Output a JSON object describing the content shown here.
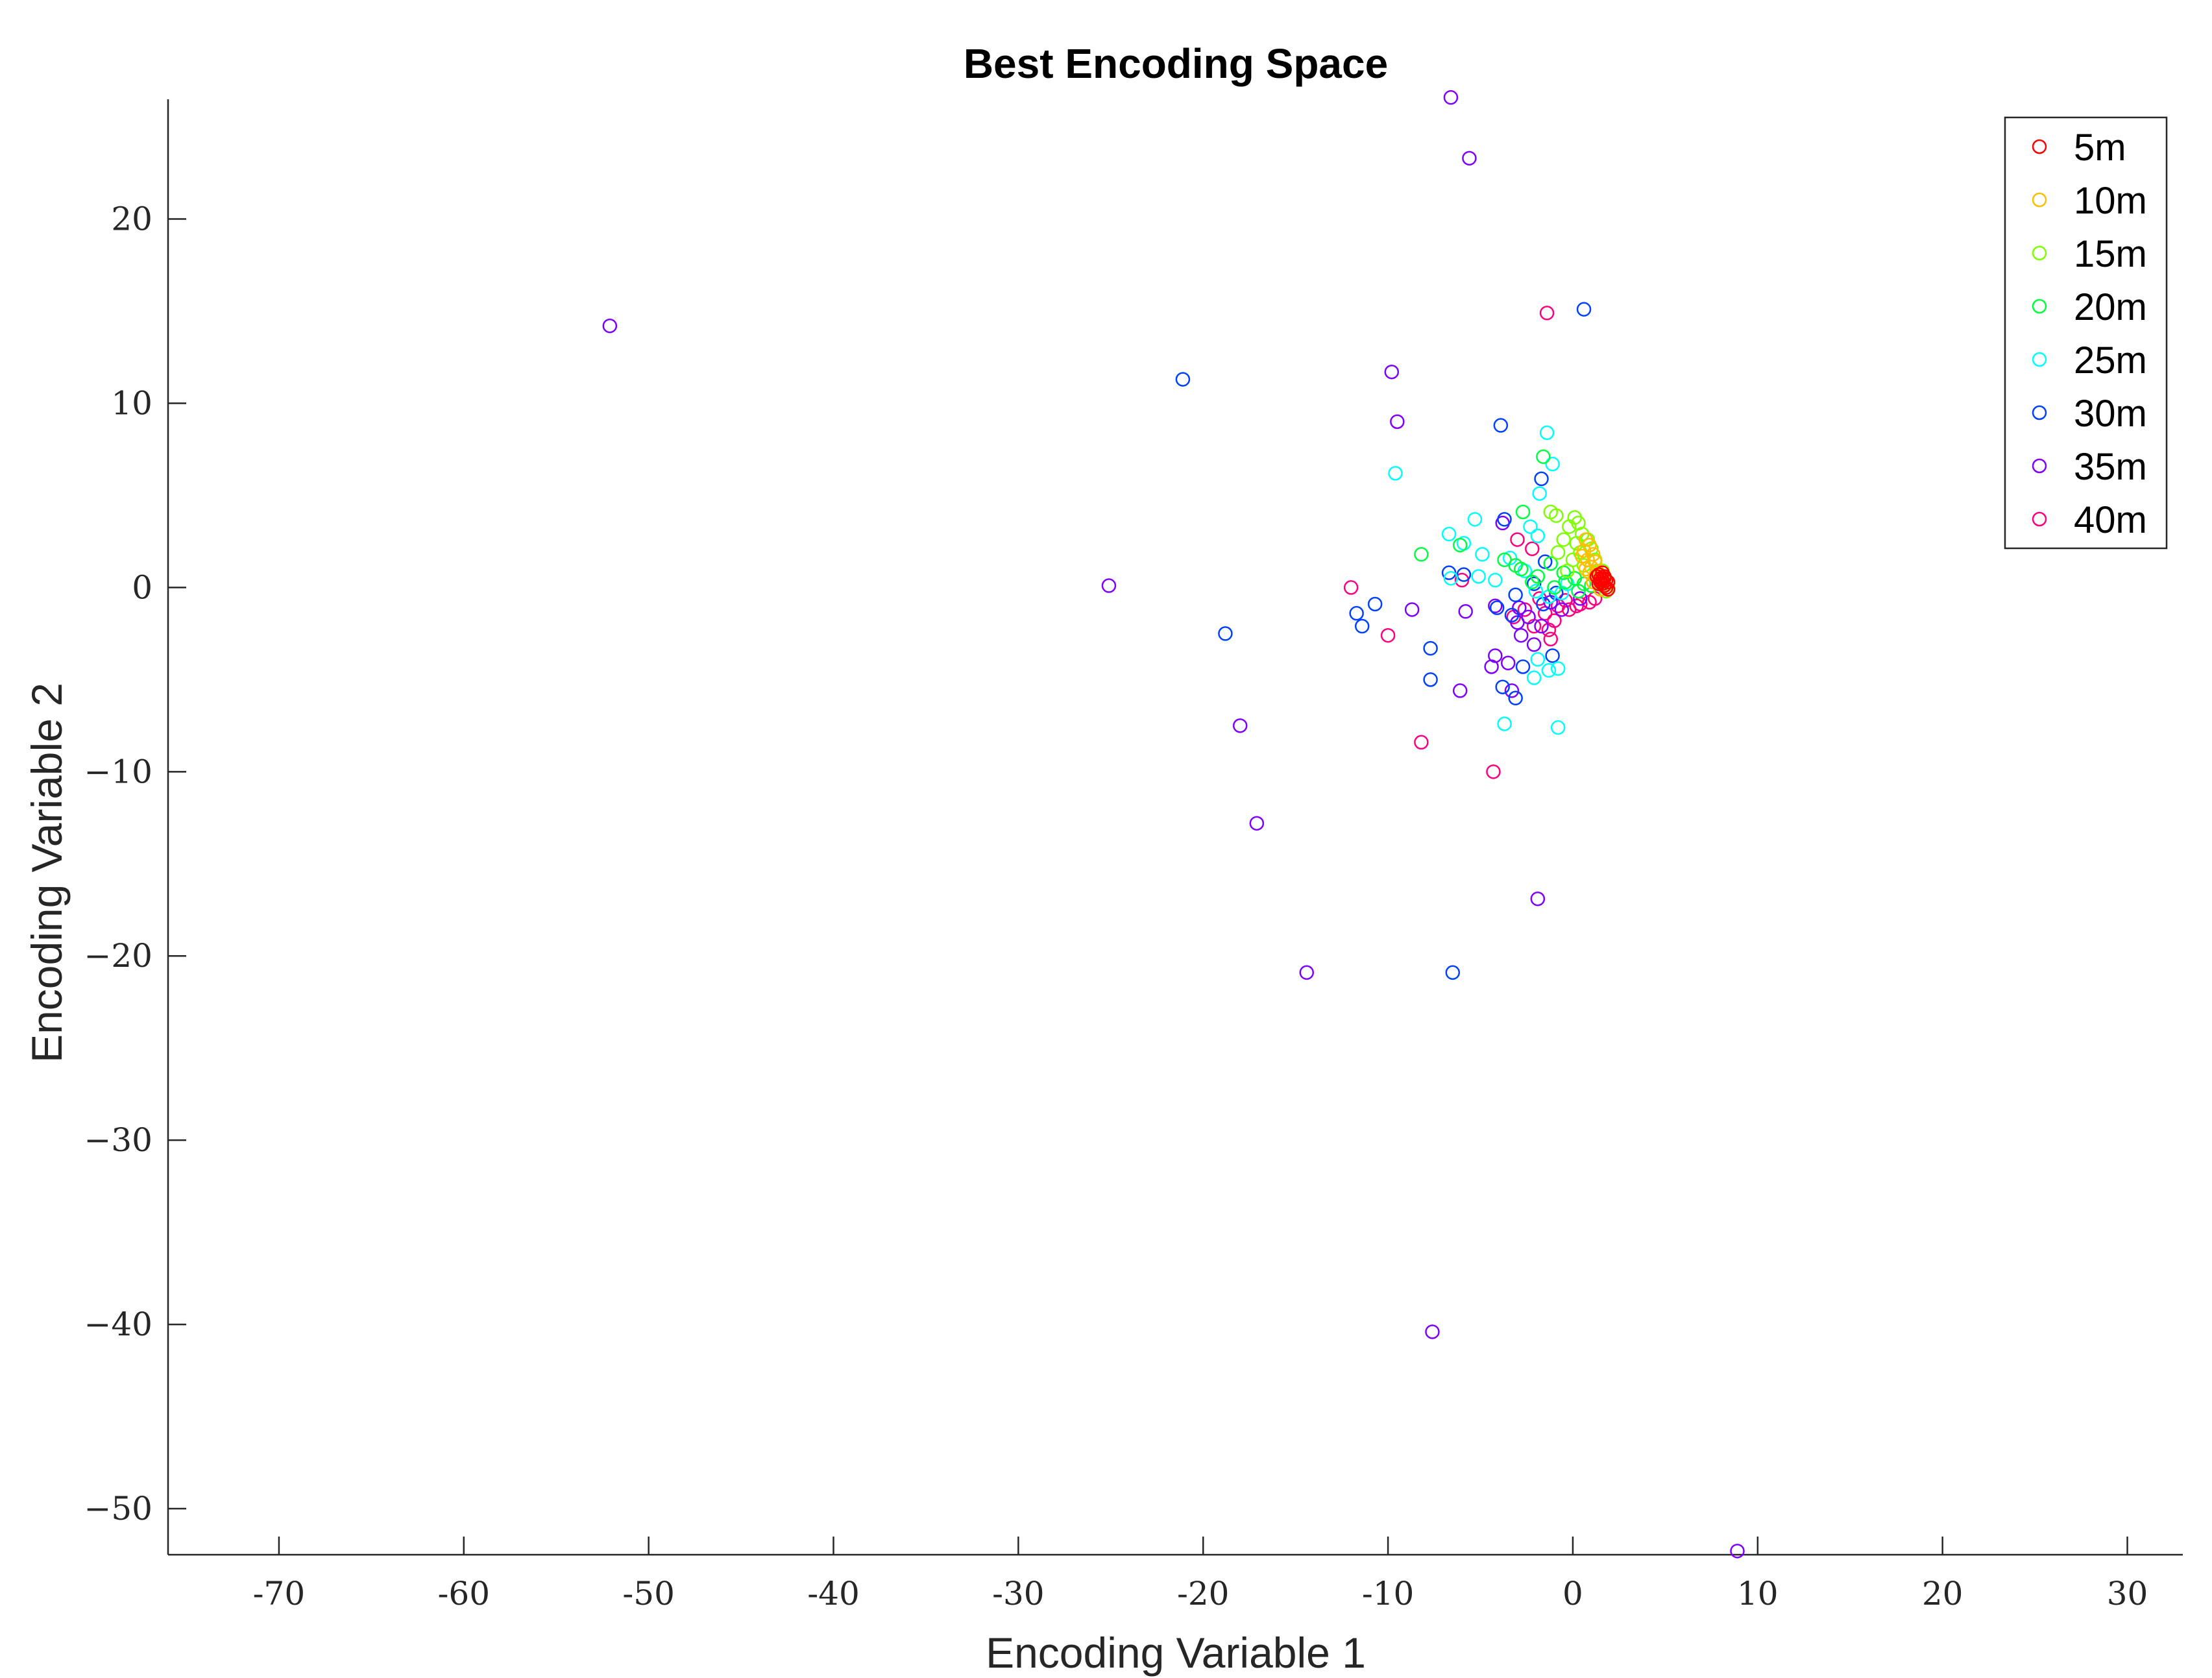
{
  "chart_data": {
    "type": "scatter",
    "title": "Best Encoding Space",
    "xlabel": "Encoding Variable 1",
    "ylabel": "Encoding Variable 2",
    "xlim": [
      -76,
      33
    ],
    "ylim": [
      -52.5,
      26.5
    ],
    "xticks": [
      -70,
      -60,
      -50,
      -40,
      -30,
      -20,
      -10,
      0,
      10,
      20,
      30
    ],
    "xtick_labels": [
      "-70",
      "-60",
      "-50",
      "-40",
      "-30",
      "-20",
      "-10",
      "0",
      "10",
      "20",
      "30"
    ],
    "yticks": [
      20,
      10,
      0,
      -10,
      -20,
      -30,
      -40,
      -50
    ],
    "ytick_labels": [
      "20",
      "10",
      "0",
      "−10",
      "−20",
      "−30",
      "−40",
      "−50"
    ],
    "grid": false,
    "marker": "open-circle",
    "legend_position": "top-right",
    "series": [
      {
        "name": "5m",
        "color": "#ff0000",
        "points": [
          [
            1.6,
            0.8
          ],
          [
            1.7,
            0.6
          ],
          [
            1.8,
            0.4
          ],
          [
            1.5,
            0.5
          ],
          [
            1.9,
            0.3
          ],
          [
            1.6,
            0.2
          ],
          [
            1.4,
            0.7
          ],
          [
            1.7,
            0.1
          ],
          [
            1.8,
            0.0
          ],
          [
            1.5,
            0.3
          ],
          [
            1.3,
            0.6
          ],
          [
            1.9,
            -0.1
          ],
          [
            1.6,
            0.4
          ],
          [
            1.7,
            0.5
          ],
          [
            1.4,
            0.2
          ]
        ]
      },
      {
        "name": "10m",
        "color": "#ffbf00",
        "points": [
          [
            0.9,
            2.3
          ],
          [
            0.7,
            2.6
          ],
          [
            1.1,
            1.8
          ],
          [
            1.2,
            1.4
          ],
          [
            0.6,
            2.0
          ],
          [
            1.0,
            1.1
          ],
          [
            1.3,
            0.9
          ],
          [
            0.8,
            1.5
          ],
          [
            1.4,
            0.4
          ],
          [
            0.5,
            1.7
          ],
          [
            1.2,
            0.6
          ],
          [
            1.5,
            -0.1
          ],
          [
            0.9,
            0.8
          ],
          [
            1.1,
            0.3
          ],
          [
            0.7,
            1.0
          ]
        ]
      },
      {
        "name": "15m",
        "color": "#80ff00",
        "points": [
          [
            -1.2,
            4.1
          ],
          [
            -0.9,
            3.9
          ],
          [
            0.1,
            3.8
          ],
          [
            0.3,
            3.5
          ],
          [
            -0.2,
            3.3
          ],
          [
            0.5,
            2.9
          ],
          [
            0.8,
            2.6
          ],
          [
            0.2,
            2.4
          ],
          [
            -0.5,
            2.6
          ],
          [
            1.0,
            2.1
          ],
          [
            0.4,
            1.9
          ],
          [
            1.2,
            1.5
          ],
          [
            -0.8,
            1.9
          ],
          [
            1.6,
            0.9
          ],
          [
            1.9,
            0.2
          ],
          [
            1.8,
            -0.2
          ],
          [
            0.6,
            1.2
          ],
          [
            1.4,
            0.6
          ],
          [
            0.0,
            1.5
          ],
          [
            -0.3,
            0.9
          ]
        ]
      },
      {
        "name": "20m",
        "color": "#00ff40",
        "points": [
          [
            -1.6,
            7.1
          ],
          [
            -2.7,
            4.1
          ],
          [
            -6.1,
            2.3
          ],
          [
            -8.2,
            1.8
          ],
          [
            -3.1,
            1.2
          ],
          [
            -2.8,
            1.0
          ],
          [
            -1.2,
            1.3
          ],
          [
            -0.5,
            0.8
          ],
          [
            0.1,
            0.5
          ],
          [
            0.6,
            0.2
          ],
          [
            -1.9,
            0.6
          ],
          [
            -3.7,
            1.5
          ],
          [
            -2.2,
            0.3
          ],
          [
            -1.0,
            0.0
          ],
          [
            0.3,
            -0.2
          ],
          [
            1.0,
            0.1
          ],
          [
            -0.4,
            0.3
          ]
        ]
      },
      {
        "name": "25m",
        "color": "#00ffff",
        "points": [
          [
            -1.4,
            8.4
          ],
          [
            -1.1,
            6.7
          ],
          [
            -9.6,
            6.2
          ],
          [
            -1.8,
            5.1
          ],
          [
            -5.3,
            3.7
          ],
          [
            -2.3,
            3.3
          ],
          [
            -1.9,
            2.8
          ],
          [
            -6.7,
            2.9
          ],
          [
            -5.9,
            2.4
          ],
          [
            -4.9,
            1.8
          ],
          [
            -3.4,
            1.6
          ],
          [
            -2.6,
            0.9
          ],
          [
            -4.2,
            0.4
          ],
          [
            -5.1,
            0.6
          ],
          [
            -6.6,
            0.5
          ],
          [
            -2.0,
            -0.2
          ],
          [
            -1.3,
            -0.5
          ],
          [
            -0.6,
            -0.3
          ],
          [
            -1.3,
            -4.5
          ],
          [
            -0.8,
            -4.4
          ],
          [
            -2.1,
            -4.9
          ],
          [
            -3.7,
            -7.4
          ],
          [
            -0.8,
            -7.6
          ],
          [
            -1.9,
            -3.9
          ],
          [
            -0.3,
            0.2
          ]
        ]
      },
      {
        "name": "30m",
        "color": "#0040ff",
        "points": [
          [
            0.6,
            15.1
          ],
          [
            -21.1,
            11.3
          ],
          [
            -3.9,
            8.8
          ],
          [
            -1.7,
            5.9
          ],
          [
            -3.7,
            3.7
          ],
          [
            -1.5,
            1.4
          ],
          [
            -6.7,
            0.8
          ],
          [
            -5.9,
            0.7
          ],
          [
            -2.1,
            0.2
          ],
          [
            -3.1,
            -0.4
          ],
          [
            -0.9,
            -0.3
          ],
          [
            -10.7,
            -0.9
          ],
          [
            -11.7,
            -1.4
          ],
          [
            -11.4,
            -2.1
          ],
          [
            -18.8,
            -2.5
          ],
          [
            -7.7,
            -3.3
          ],
          [
            -1.1,
            -3.7
          ],
          [
            -4.1,
            -1.1
          ],
          [
            -2.7,
            -4.3
          ],
          [
            -7.7,
            -5.0
          ],
          [
            -3.8,
            -5.4
          ],
          [
            -3.1,
            -6.0
          ],
          [
            -6.5,
            -20.9
          ],
          [
            -3.3,
            -1.5
          ],
          [
            -1.6,
            -0.9
          ]
        ]
      },
      {
        "name": "35m",
        "color": "#8000ff",
        "points": [
          [
            -6.6,
            26.6
          ],
          [
            -5.6,
            23.3
          ],
          [
            -52.1,
            14.2
          ],
          [
            -9.8,
            11.7
          ],
          [
            -9.5,
            9.0
          ],
          [
            -25.1,
            0.1
          ],
          [
            -8.7,
            -1.2
          ],
          [
            -5.8,
            -1.3
          ],
          [
            -4.2,
            -1.0
          ],
          [
            -2.8,
            -2.6
          ],
          [
            -4.2,
            -3.7
          ],
          [
            -4.4,
            -4.3
          ],
          [
            -3.5,
            -4.1
          ],
          [
            -3.3,
            -5.6
          ],
          [
            -6.1,
            -5.6
          ],
          [
            -18.0,
            -7.5
          ],
          [
            -17.1,
            -12.8
          ],
          [
            -1.9,
            -16.9
          ],
          [
            -14.4,
            -20.9
          ],
          [
            -7.6,
            -40.4
          ],
          [
            8.9,
            -52.3
          ],
          [
            -1.7,
            -2.1
          ],
          [
            -0.6,
            -1.2
          ],
          [
            -2.4,
            -1.6
          ],
          [
            -3.0,
            -1.9
          ],
          [
            -1.2,
            -0.8
          ],
          [
            0.4,
            -0.6
          ],
          [
            -2.1,
            -3.1
          ],
          [
            -3.8,
            3.5
          ],
          [
            -2.9,
            -1.1
          ]
        ]
      },
      {
        "name": "40m",
        "color": "#ff0080",
        "points": [
          [
            -1.4,
            14.9
          ],
          [
            -3.0,
            2.6
          ],
          [
            -12.0,
            0.0
          ],
          [
            -6.0,
            0.4
          ],
          [
            -10.0,
            -2.6
          ],
          [
            -1.2,
            -2.8
          ],
          [
            -8.2,
            -8.4
          ],
          [
            -4.3,
            -10.0
          ],
          [
            -2.1,
            -2.1
          ],
          [
            -1.5,
            -1.4
          ],
          [
            -0.8,
            -1.0
          ],
          [
            -0.2,
            -1.2
          ],
          [
            0.4,
            -0.9
          ],
          [
            0.9,
            -0.8
          ],
          [
            -2.6,
            -1.2
          ],
          [
            -1.8,
            -0.6
          ],
          [
            -2.2,
            2.1
          ],
          [
            -3.2,
            -1.6
          ],
          [
            -1.0,
            -1.8
          ],
          [
            -0.4,
            -0.7
          ],
          [
            0.2,
            -1.0
          ],
          [
            1.2,
            -0.6
          ],
          [
            -1.3,
            -2.3
          ]
        ]
      }
    ]
  }
}
